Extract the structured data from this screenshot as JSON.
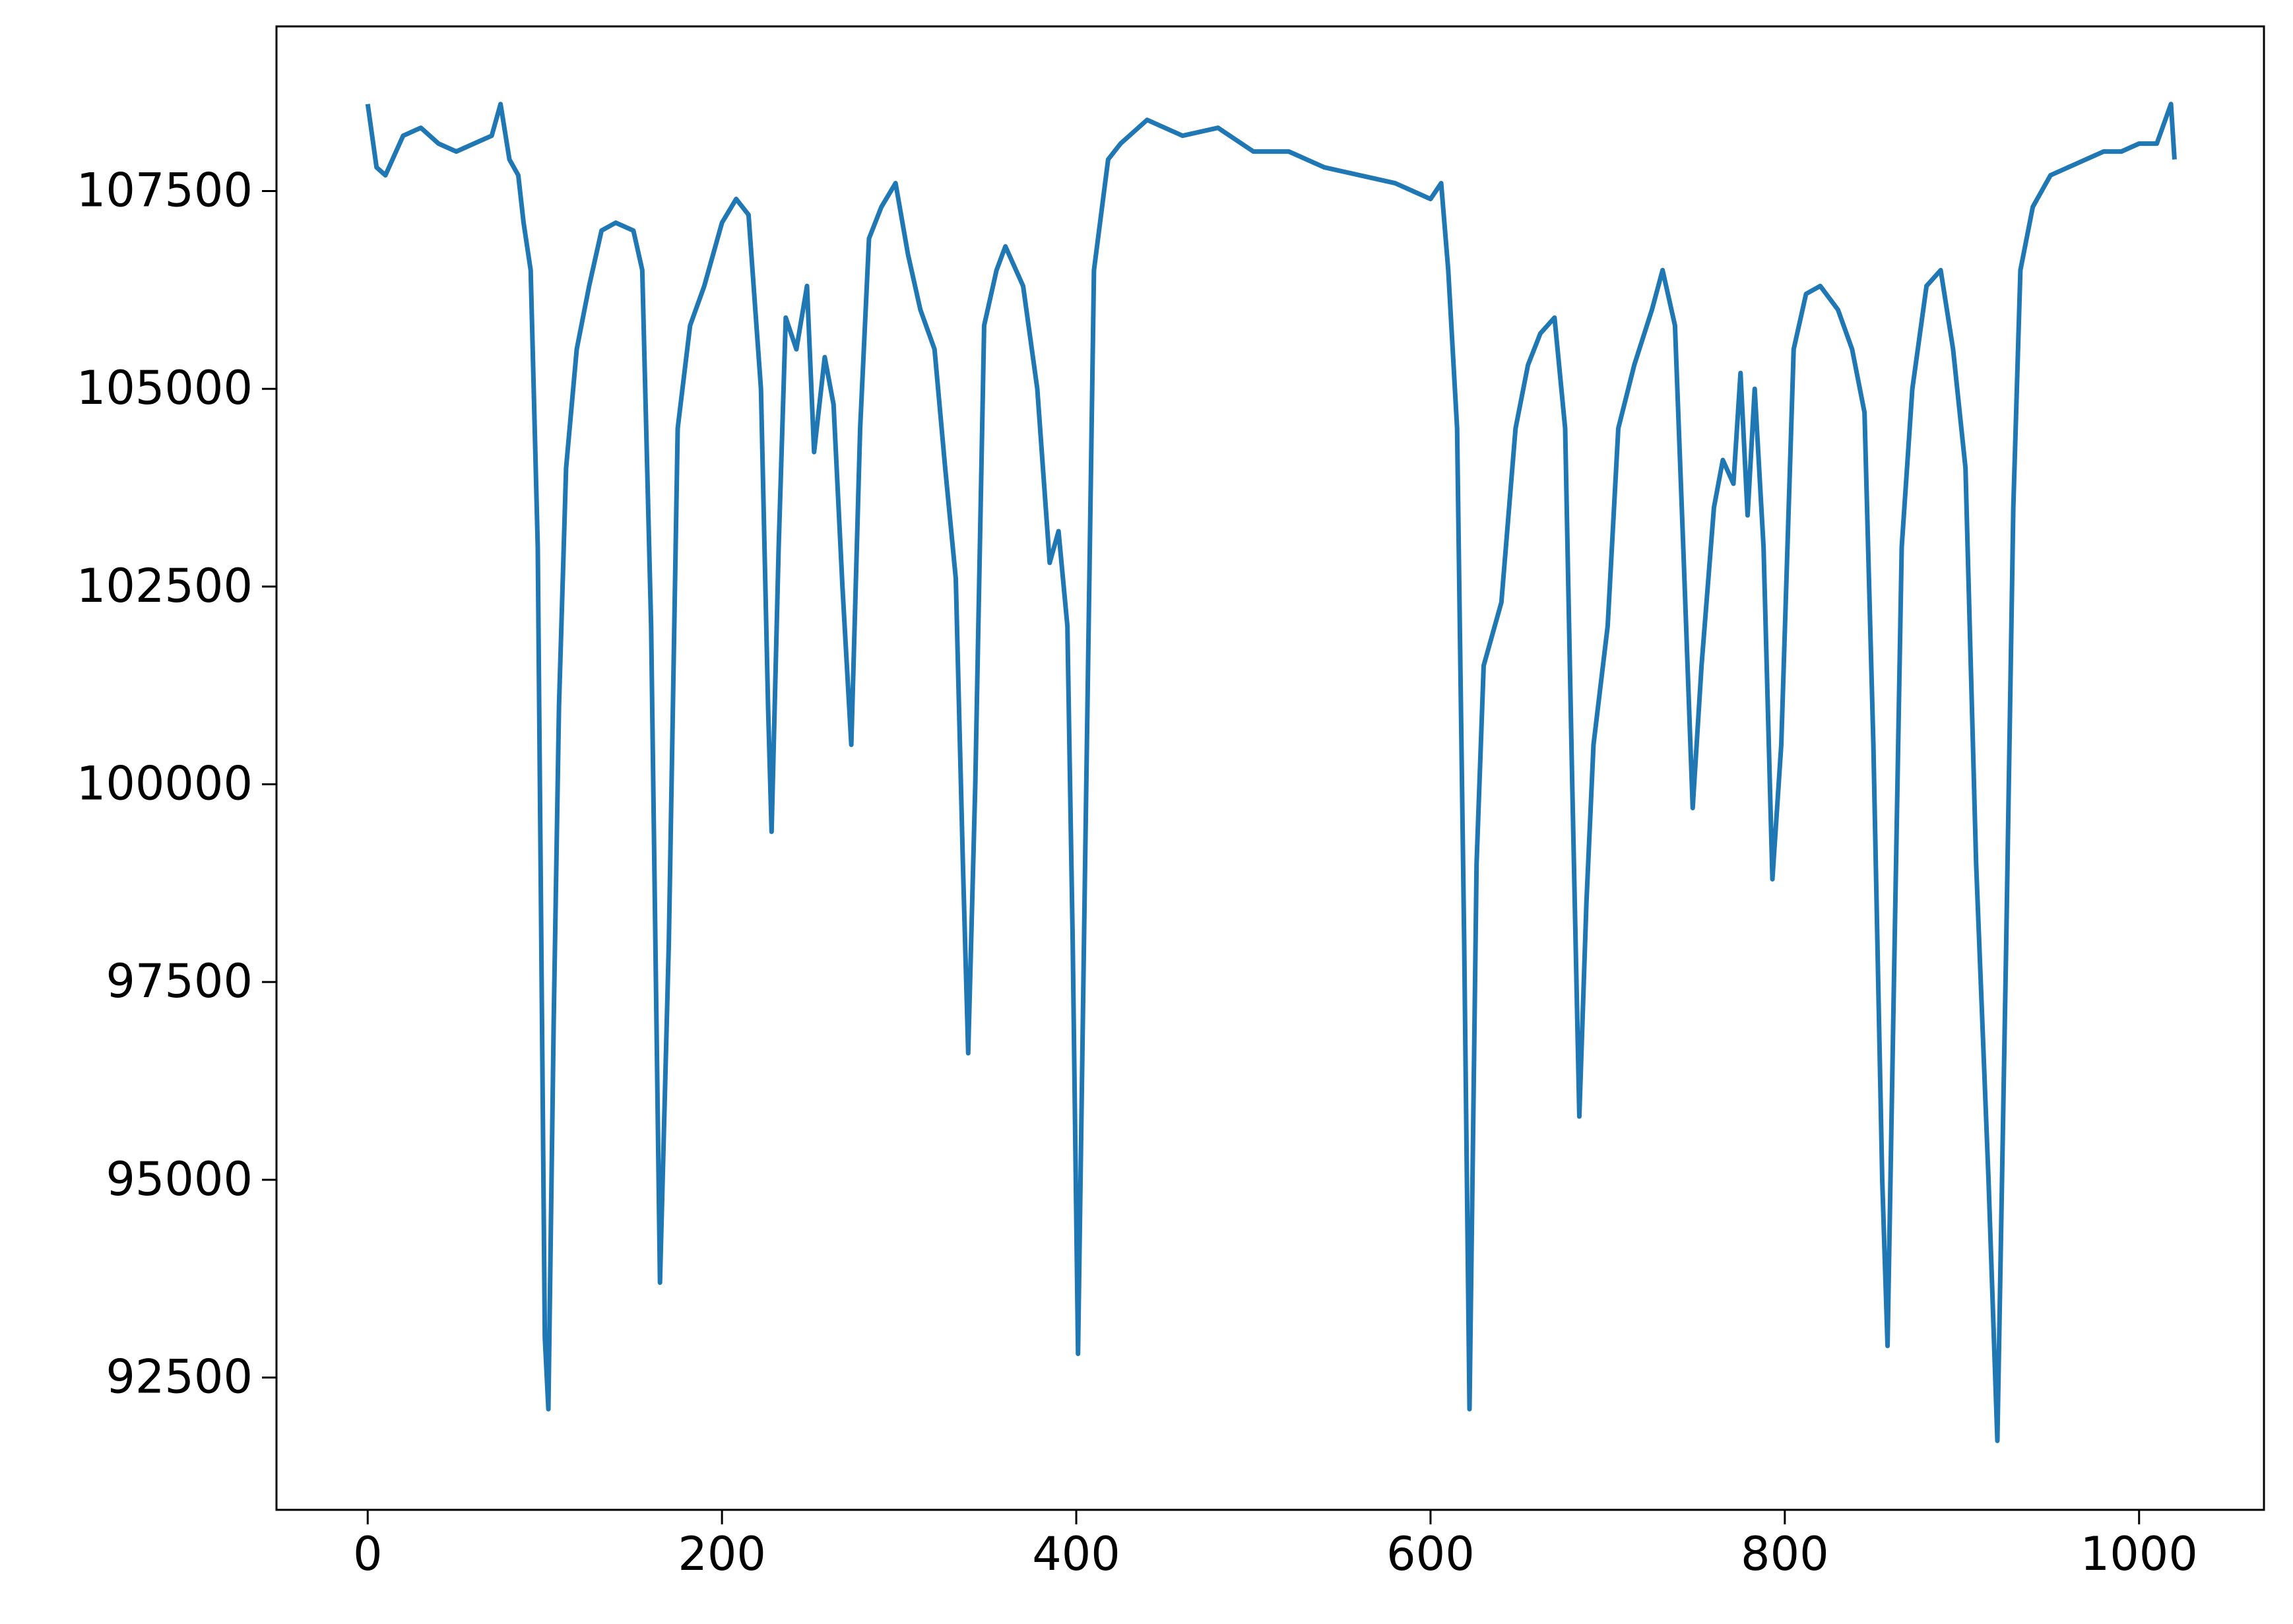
{
  "chart_data": {
    "type": "line",
    "x": [
      0,
      5,
      10,
      20,
      30,
      40,
      50,
      60,
      70,
      75,
      80,
      85,
      88,
      92,
      96,
      100,
      102,
      105,
      108,
      112,
      118,
      125,
      132,
      140,
      150,
      155,
      160,
      165,
      170,
      175,
      182,
      190,
      200,
      208,
      215,
      222,
      226,
      228,
      232,
      236,
      242,
      248,
      252,
      258,
      263,
      268,
      273,
      278,
      283,
      290,
      298,
      305,
      312,
      320,
      326,
      332,
      336,
      339,
      343,
      348,
      355,
      360,
      370,
      378,
      385,
      390,
      395,
      398,
      401,
      405,
      410,
      418,
      425,
      440,
      460,
      480,
      500,
      520,
      540,
      560,
      580,
      600,
      606,
      610,
      615,
      619,
      622,
      626,
      630,
      640,
      648,
      655,
      662,
      670,
      676,
      680,
      684,
      688,
      692,
      700,
      706,
      715,
      725,
      731,
      738,
      743,
      748,
      753,
      760,
      765,
      771,
      775,
      779,
      783,
      788,
      793,
      798,
      805,
      812,
      820,
      830,
      838,
      845,
      850,
      855,
      858,
      862,
      866,
      872,
      880,
      888,
      895,
      902,
      908,
      915,
      920,
      925,
      929,
      933,
      940,
      950,
      960,
      970,
      980,
      990,
      1000,
      1010,
      1018,
      1020
    ],
    "series": [
      {
        "color": "#1f77b4",
        "values": [
          108600,
          107800,
          107700,
          108200,
          108300,
          108100,
          108000,
          108100,
          108200,
          108600,
          107900,
          107700,
          107100,
          106500,
          103000,
          93000,
          92100,
          97000,
          101000,
          104000,
          105500,
          106300,
          107000,
          107100,
          107000,
          106500,
          102000,
          93700,
          98000,
          104500,
          105800,
          106300,
          107100,
          107400,
          107200,
          105000,
          101000,
          99400,
          103000,
          105900,
          105500,
          106300,
          104200,
          105400,
          104800,
          102500,
          100500,
          104500,
          106900,
          107300,
          107600,
          106700,
          106000,
          105500,
          104000,
          102600,
          99000,
          96600,
          100000,
          105800,
          106500,
          106800,
          106300,
          105000,
          102800,
          103200,
          102000,
          98000,
          92800,
          99000,
          106500,
          107900,
          108100,
          108400,
          108200,
          108300,
          108000,
          108000,
          107800,
          107700,
          107600,
          107400,
          107600,
          106500,
          104500,
          98000,
          92100,
          99000,
          101500,
          102300,
          104500,
          105300,
          105700,
          105900,
          104500,
          100000,
          95800,
          98500,
          100500,
          102000,
          104500,
          105300,
          106000,
          106500,
          105800,
          102800,
          99700,
          101500,
          103500,
          104100,
          103800,
          105200,
          103400,
          105000,
          103000,
          98800,
          100500,
          105500,
          106200,
          106300,
          106000,
          105500,
          104700,
          100500,
          95000,
          92900,
          98000,
          103000,
          105000,
          106300,
          106500,
          105500,
          104000,
          99000,
          95000,
          91700,
          98000,
          103500,
          106500,
          107300,
          107700,
          107800,
          107900,
          108000,
          108000,
          108100,
          108100,
          108600,
          107900
        ]
      }
    ],
    "xlim": [
      -51.5,
      1070.5
    ],
    "ylim": [
      90827,
      109582
    ],
    "xticks": [
      0,
      200,
      400,
      600,
      800,
      1000
    ],
    "yticks": [
      92500,
      95000,
      97500,
      100000,
      102500,
      105000,
      107500
    ],
    "grid": false
  }
}
